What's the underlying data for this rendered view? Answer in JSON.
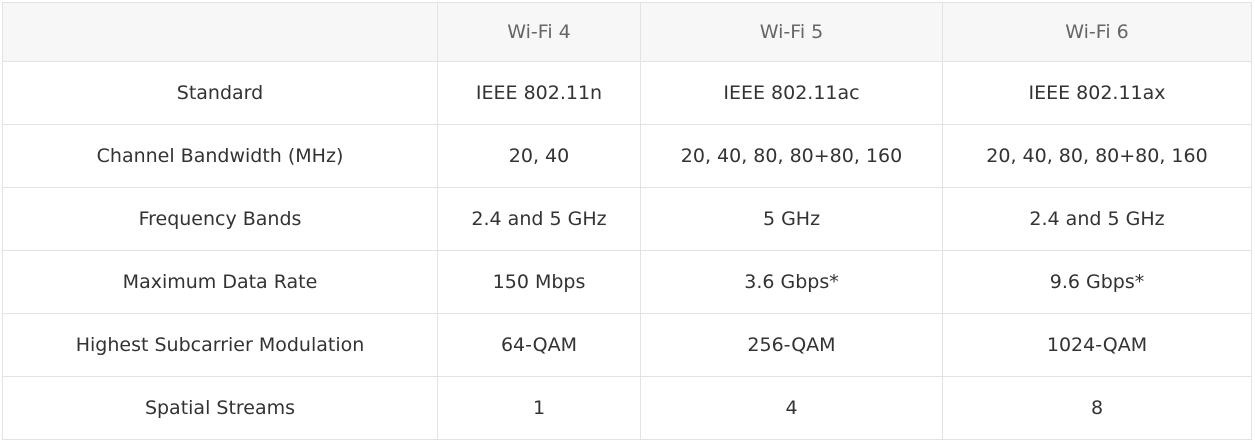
{
  "table": {
    "headers": [
      "",
      "Wi-Fi 4",
      "Wi-Fi 5",
      "Wi-Fi 6"
    ],
    "rows": [
      [
        "Standard",
        "IEEE 802.11n",
        "IEEE 802.11ac",
        "IEEE 802.11ax"
      ],
      [
        "Channel Bandwidth (MHz)",
        "20, 40",
        "20, 40, 80, 80+80, 160",
        "20, 40, 80, 80+80, 160"
      ],
      [
        "Frequency Bands",
        "2.4 and 5 GHz",
        "5 GHz",
        "2.4 and 5 GHz"
      ],
      [
        "Maximum Data Rate",
        "150 Mbps",
        "3.6 Gbps*",
        "9.6 Gbps*"
      ],
      [
        "Highest Subcarrier Modulation",
        "64-QAM",
        "256-QAM",
        "1024-QAM"
      ],
      [
        "Spatial Streams",
        "1",
        "4",
        "8"
      ]
    ]
  }
}
